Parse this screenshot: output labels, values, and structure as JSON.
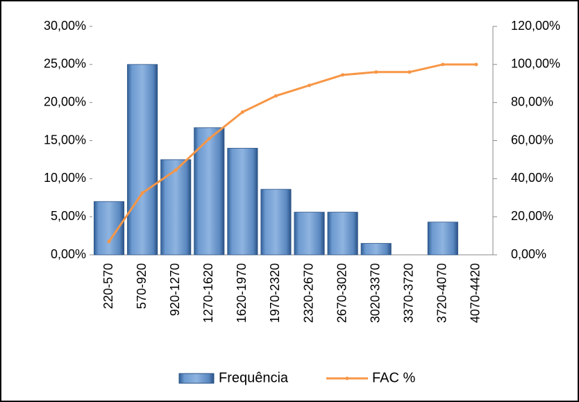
{
  "chart_data": {
    "type": "bar_line",
    "categories": [
      "220-570",
      "570-920",
      "920-1270",
      "1270-1620",
      "1620-1970",
      "1970-2320",
      "2320-2670",
      "2670-3020",
      "3020-3370",
      "3370-3720",
      "3720-4070",
      "4070-4420"
    ],
    "series": [
      {
        "name": "Frequência",
        "type": "bar",
        "color": "#4f81bd",
        "values": [
          7.0,
          25.0,
          12.5,
          16.7,
          14.0,
          8.6,
          5.6,
          5.6,
          1.5,
          0,
          4.3,
          0
        ]
      },
      {
        "name": "FAC %",
        "type": "line",
        "axis": "y2",
        "color": "#f79646",
        "values": [
          7,
          32.5,
          44.5,
          61,
          75,
          83.5,
          89,
          94.5,
          96,
          96,
          100,
          100
        ]
      }
    ],
    "ylim": [
      0,
      30
    ],
    "yticks": [
      {
        "value": 0,
        "label": "0,00%"
      },
      {
        "value": 5,
        "label": "5,00%"
      },
      {
        "value": 10,
        "label": "10,00%"
      },
      {
        "value": 15,
        "label": "15,00%"
      },
      {
        "value": 20,
        "label": "20,00%"
      },
      {
        "value": 25,
        "label": "25,00%"
      },
      {
        "value": 30,
        "label": "30,00%"
      }
    ],
    "y2lim": [
      0,
      120
    ],
    "y2ticks": [
      {
        "value": 0,
        "label": "0,00%"
      },
      {
        "value": 20,
        "label": "20,00%"
      },
      {
        "value": 40,
        "label": "40,00%"
      },
      {
        "value": 60,
        "label": "60,00%"
      },
      {
        "value": 80,
        "label": "80,00%"
      },
      {
        "value": 100,
        "label": "100,00%"
      },
      {
        "value": 120,
        "label": "120,00%"
      }
    ],
    "legend": "bottom"
  }
}
